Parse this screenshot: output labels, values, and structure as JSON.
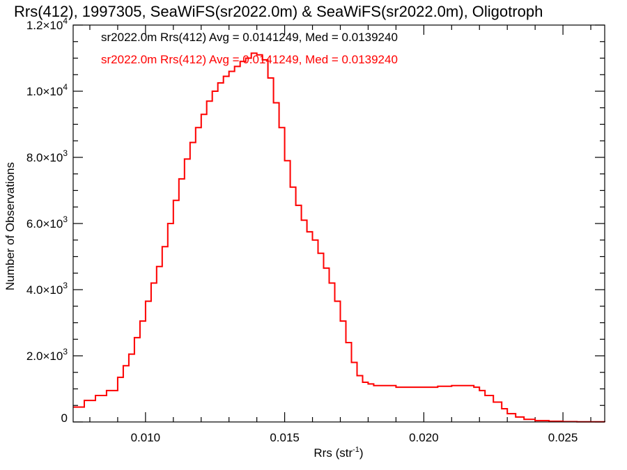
{
  "chart_data": {
    "type": "line",
    "title": "Rrs(412), 1997305, SeaWiFS(sr2022.0m) & SeaWiFS(sr2022.0m), Oligotroph",
    "xlabel_main": "Rrs (str",
    "xlabel_sup": "-1",
    "xlabel_end": ")",
    "ylabel": "Number of Observations",
    "xlim": [
      0.0074,
      0.0265
    ],
    "ylim": [
      0,
      12000
    ],
    "x_ticks": [
      0.01,
      0.015,
      0.02,
      0.025
    ],
    "x_tick_labels": [
      "0.010",
      "0.015",
      "0.020",
      "0.025"
    ],
    "y_ticks": [
      {
        "value": 0,
        "mant": "0",
        "exp": ""
      },
      {
        "value": 2000,
        "mant": "2.0×10",
        "exp": "3"
      },
      {
        "value": 4000,
        "mant": "4.0×10",
        "exp": "3"
      },
      {
        "value": 6000,
        "mant": "6.0×10",
        "exp": "3"
      },
      {
        "value": 8000,
        "mant": "8.0×10",
        "exp": "3"
      },
      {
        "value": 10000,
        "mant": "1.0×10",
        "exp": "4"
      },
      {
        "value": 12000,
        "mant": "1.2×10",
        "exp": "4"
      }
    ],
    "legend": [
      {
        "text": "sr2022.0m Rrs(412) Avg = 0.0141249, Med = 0.0139240",
        "color": "#000000"
      },
      {
        "text": "sr2022.0m Rrs(412) Avg = 0.0141249, Med = 0.0139240",
        "color": "#ff0000"
      }
    ],
    "step": "histogram",
    "series": [
      {
        "color": "#000000",
        "x": [
          0.0074,
          0.0078,
          0.0082,
          0.0086,
          0.009,
          0.0092,
          0.0094,
          0.0096,
          0.0098,
          0.01,
          0.0102,
          0.0104,
          0.0106,
          0.0108,
          0.011,
          0.0112,
          0.0114,
          0.0116,
          0.0118,
          0.012,
          0.0122,
          0.0124,
          0.0126,
          0.0128,
          0.013,
          0.0132,
          0.0134,
          0.0136,
          0.0138,
          0.014,
          0.0142,
          0.0144,
          0.0146,
          0.0148,
          0.015,
          0.0152,
          0.0154,
          0.0156,
          0.0158,
          0.016,
          0.0162,
          0.0164,
          0.0166,
          0.0168,
          0.017,
          0.0172,
          0.0174,
          0.0176,
          0.0178,
          0.018,
          0.0182,
          0.0185,
          0.019,
          0.0195,
          0.02,
          0.0205,
          0.021,
          0.0215,
          0.0218,
          0.022,
          0.0222,
          0.0225,
          0.0228,
          0.023,
          0.0233,
          0.0236,
          0.024,
          0.0245,
          0.025,
          0.0255,
          0.0265
        ],
        "y": [
          450,
          650,
          800,
          950,
          1350,
          1700,
          2050,
          2550,
          3050,
          3650,
          4200,
          4700,
          5300,
          6000,
          6700,
          7350,
          7950,
          8450,
          8900,
          9300,
          9700,
          10000,
          10250,
          10450,
          10600,
          10750,
          10900,
          11000,
          11150,
          11100,
          10950,
          10400,
          9650,
          8900,
          7900,
          7100,
          6550,
          6100,
          5750,
          5500,
          5100,
          4650,
          4200,
          3650,
          3050,
          2400,
          1800,
          1400,
          1200,
          1150,
          1100,
          1100,
          1050,
          1050,
          1050,
          1080,
          1100,
          1100,
          1050,
          950,
          800,
          600,
          400,
          250,
          150,
          80,
          40,
          20,
          10,
          5,
          0
        ]
      },
      {
        "color": "#ff0000",
        "x": [
          0.0074,
          0.0078,
          0.0082,
          0.0086,
          0.009,
          0.0092,
          0.0094,
          0.0096,
          0.0098,
          0.01,
          0.0102,
          0.0104,
          0.0106,
          0.0108,
          0.011,
          0.0112,
          0.0114,
          0.0116,
          0.0118,
          0.012,
          0.0122,
          0.0124,
          0.0126,
          0.0128,
          0.013,
          0.0132,
          0.0134,
          0.0136,
          0.0138,
          0.014,
          0.0142,
          0.0144,
          0.0146,
          0.0148,
          0.015,
          0.0152,
          0.0154,
          0.0156,
          0.0158,
          0.016,
          0.0162,
          0.0164,
          0.0166,
          0.0168,
          0.017,
          0.0172,
          0.0174,
          0.0176,
          0.0178,
          0.018,
          0.0182,
          0.0185,
          0.019,
          0.0195,
          0.02,
          0.0205,
          0.021,
          0.0215,
          0.0218,
          0.022,
          0.0222,
          0.0225,
          0.0228,
          0.023,
          0.0233,
          0.0236,
          0.024,
          0.0245,
          0.025,
          0.0255,
          0.0265
        ],
        "y": [
          450,
          650,
          800,
          950,
          1350,
          1700,
          2050,
          2550,
          3050,
          3650,
          4200,
          4700,
          5300,
          6000,
          6700,
          7350,
          7950,
          8450,
          8900,
          9300,
          9700,
          10000,
          10250,
          10450,
          10600,
          10750,
          10900,
          11000,
          11150,
          11100,
          10950,
          10400,
          9650,
          8900,
          7900,
          7100,
          6550,
          6100,
          5750,
          5500,
          5100,
          4650,
          4200,
          3650,
          3050,
          2400,
          1800,
          1400,
          1200,
          1150,
          1100,
          1100,
          1050,
          1050,
          1050,
          1080,
          1100,
          1100,
          1050,
          950,
          800,
          600,
          400,
          250,
          150,
          80,
          40,
          20,
          10,
          5,
          0
        ]
      }
    ]
  }
}
